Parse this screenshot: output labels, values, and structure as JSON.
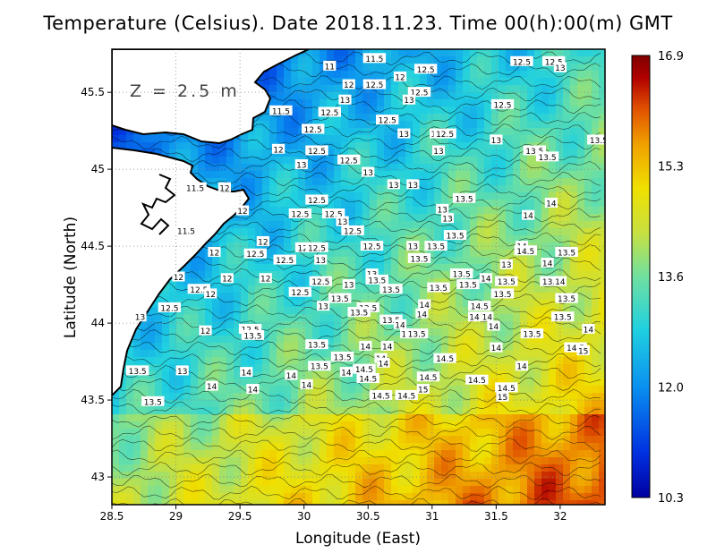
{
  "title": "Temperature (Celsius). Date 2018.11.23. Time 00(h):00(m) GMT",
  "depth_label": "Z = 2.5 m",
  "chart_data": {
    "type": "heatmap",
    "title": "Temperature (Celsius). Date 2018.11.23. Time 00(h):00(m) GMT",
    "xlabel": "Longitude (East)",
    "ylabel": "Latitude (North)",
    "xlim": [
      28.5,
      32.35
    ],
    "ylim": [
      42.82,
      45.78
    ],
    "xticks": [
      "28.5",
      "29",
      "29.5",
      "30",
      "30.5",
      "31",
      "31.5",
      "32"
    ],
    "yticks": [
      "43",
      "43.5",
      "44",
      "44.5",
      "45",
      "45.5"
    ],
    "grid": true,
    "colorbar": {
      "min": 10.3,
      "max": 16.9,
      "tick_labels": [
        "16.9",
        "15.3",
        "13.6",
        "12.0",
        "10.3"
      ],
      "colors": [
        "#0000a0",
        "#0030e0",
        "#0a90f0",
        "#20d0e0",
        "#70e0a0",
        "#c8e040",
        "#f0e000",
        "#f0a000",
        "#e05000",
        "#b00000",
        "#800000"
      ]
    },
    "contour_labels": [
      {
        "text": "11.5",
        "x": 30.55,
        "y": 45.72
      },
      {
        "text": "12.5",
        "x": 31.7,
        "y": 45.7
      },
      {
        "text": "12.5",
        "x": 31.95,
        "y": 45.7
      },
      {
        "text": "13",
        "x": 32.0,
        "y": 45.66
      },
      {
        "text": "11",
        "x": 30.2,
        "y": 45.67
      },
      {
        "text": "12.5",
        "x": 30.95,
        "y": 45.65
      },
      {
        "text": "12",
        "x": 30.75,
        "y": 45.6
      },
      {
        "text": "12",
        "x": 30.35,
        "y": 45.55
      },
      {
        "text": "12.5",
        "x": 30.55,
        "y": 45.55
      },
      {
        "text": "12.5",
        "x": 30.9,
        "y": 45.5
      },
      {
        "text": "13",
        "x": 30.82,
        "y": 45.45
      },
      {
        "text": "12.5",
        "x": 31.55,
        "y": 45.42
      },
      {
        "text": "13",
        "x": 30.32,
        "y": 45.45
      },
      {
        "text": "12.5",
        "x": 30.2,
        "y": 45.37
      },
      {
        "text": "11.5",
        "x": 29.82,
        "y": 45.38
      },
      {
        "text": "12.5",
        "x": 30.65,
        "y": 45.32
      },
      {
        "text": "12.5",
        "x": 30.07,
        "y": 45.26
      },
      {
        "text": "13",
        "x": 30.78,
        "y": 45.23
      },
      {
        "text": "13",
        "x": 31.03,
        "y": 45.23
      },
      {
        "text": "12.5",
        "x": 31.1,
        "y": 45.23
      },
      {
        "text": "13",
        "x": 31.5,
        "y": 45.19
      },
      {
        "text": "13.5",
        "x": 32.3,
        "y": 45.19
      },
      {
        "text": "12.5",
        "x": 30.1,
        "y": 45.12
      },
      {
        "text": "12",
        "x": 29.8,
        "y": 45.13
      },
      {
        "text": "13.5",
        "x": 31.8,
        "y": 45.12
      },
      {
        "text": "13",
        "x": 31.05,
        "y": 45.12
      },
      {
        "text": "13.5",
        "x": 31.9,
        "y": 45.08
      },
      {
        "text": "12.5",
        "x": 30.35,
        "y": 45.06
      },
      {
        "text": "13",
        "x": 29.98,
        "y": 45.03
      },
      {
        "text": "13",
        "x": 30.5,
        "y": 44.98
      },
      {
        "text": "11.5",
        "x": 29.15,
        "y": 44.88
      },
      {
        "text": "12",
        "x": 29.38,
        "y": 44.88
      },
      {
        "text": "13",
        "x": 30.7,
        "y": 44.9
      },
      {
        "text": "13",
        "x": 30.85,
        "y": 44.9
      },
      {
        "text": "12.5",
        "x": 30.1,
        "y": 44.8
      },
      {
        "text": "13.5",
        "x": 31.25,
        "y": 44.81
      },
      {
        "text": "14",
        "x": 31.93,
        "y": 44.78
      },
      {
        "text": "12",
        "x": 29.52,
        "y": 44.73
      },
      {
        "text": "12.5",
        "x": 29.97,
        "y": 44.71
      },
      {
        "text": "12.5",
        "x": 30.23,
        "y": 44.71
      },
      {
        "text": "13",
        "x": 31.08,
        "y": 44.74
      },
      {
        "text": "14",
        "x": 31.75,
        "y": 44.7
      },
      {
        "text": "13",
        "x": 30.3,
        "y": 44.66
      },
      {
        "text": "13",
        "x": 31.12,
        "y": 44.68
      },
      {
        "text": "12.5",
        "x": 30.38,
        "y": 44.6
      },
      {
        "text": "11.5",
        "x": 29.08,
        "y": 44.6
      },
      {
        "text": "13.5",
        "x": 31.18,
        "y": 44.57
      },
      {
        "text": "12",
        "x": 29.68,
        "y": 44.53
      },
      {
        "text": "12.5",
        "x": 30.53,
        "y": 44.5
      },
      {
        "text": "13",
        "x": 30.85,
        "y": 44.5
      },
      {
        "text": "13.5",
        "x": 31.03,
        "y": 44.5
      },
      {
        "text": "14",
        "x": 31.7,
        "y": 44.5
      },
      {
        "text": "12.5",
        "x": 30.02,
        "y": 44.49
      },
      {
        "text": "12.5",
        "x": 30.1,
        "y": 44.49
      },
      {
        "text": "12",
        "x": 29.3,
        "y": 44.46
      },
      {
        "text": "12.5",
        "x": 29.62,
        "y": 44.45
      },
      {
        "text": "14.5",
        "x": 31.73,
        "y": 44.47
      },
      {
        "text": "13.5",
        "x": 32.05,
        "y": 44.46
      },
      {
        "text": "12.5",
        "x": 29.85,
        "y": 44.41
      },
      {
        "text": "13",
        "x": 30.13,
        "y": 44.41
      },
      {
        "text": "13.5",
        "x": 30.9,
        "y": 44.42
      },
      {
        "text": "14",
        "x": 31.9,
        "y": 44.39
      },
      {
        "text": "13",
        "x": 31.58,
        "y": 44.38
      },
      {
        "text": "12",
        "x": 29.02,
        "y": 44.3
      },
      {
        "text": "12",
        "x": 29.4,
        "y": 44.29
      },
      {
        "text": "12",
        "x": 29.7,
        "y": 44.29
      },
      {
        "text": "13",
        "x": 30.53,
        "y": 44.32
      },
      {
        "text": "13.5",
        "x": 31.23,
        "y": 44.32
      },
      {
        "text": "14",
        "x": 31.42,
        "y": 44.29
      },
      {
        "text": "12.5",
        "x": 30.13,
        "y": 44.27
      },
      {
        "text": "13",
        "x": 30.35,
        "y": 44.25
      },
      {
        "text": "13.5",
        "x": 30.57,
        "y": 44.28
      },
      {
        "text": "13.5",
        "x": 31.28,
        "y": 44.25
      },
      {
        "text": "13.5",
        "x": 31.58,
        "y": 44.27
      },
      {
        "text": "13.5",
        "x": 31.93,
        "y": 44.27
      },
      {
        "text": "14",
        "x": 32.0,
        "y": 44.27
      },
      {
        "text": "12.5",
        "x": 29.18,
        "y": 44.22
      },
      {
        "text": "12",
        "x": 29.27,
        "y": 44.19
      },
      {
        "text": "12.5",
        "x": 29.97,
        "y": 44.2
      },
      {
        "text": "13.5",
        "x": 30.68,
        "y": 44.22
      },
      {
        "text": "13.5",
        "x": 31.05,
        "y": 44.23
      },
      {
        "text": "13.5",
        "x": 31.55,
        "y": 44.19
      },
      {
        "text": "13.5",
        "x": 30.28,
        "y": 44.16
      },
      {
        "text": "13.5",
        "x": 32.05,
        "y": 44.16
      },
      {
        "text": "12.5",
        "x": 28.95,
        "y": 44.1
      },
      {
        "text": "13",
        "x": 30.15,
        "y": 44.11
      },
      {
        "text": "13.5",
        "x": 30.5,
        "y": 44.1
      },
      {
        "text": "14",
        "x": 30.94,
        "y": 44.12
      },
      {
        "text": "14.5",
        "x": 31.37,
        "y": 44.11
      },
      {
        "text": "13.5",
        "x": 30.43,
        "y": 44.07
      },
      {
        "text": "14",
        "x": 30.92,
        "y": 44.06
      },
      {
        "text": "14",
        "x": 31.33,
        "y": 44.04
      },
      {
        "text": "14",
        "x": 31.43,
        "y": 44.04
      },
      {
        "text": "13",
        "x": 28.72,
        "y": 44.04
      },
      {
        "text": "13.5",
        "x": 32.02,
        "y": 44.04
      },
      {
        "text": "13.5",
        "x": 30.68,
        "y": 44.02
      },
      {
        "text": "14",
        "x": 30.75,
        "y": 43.99
      },
      {
        "text": "14",
        "x": 31.48,
        "y": 43.98
      },
      {
        "text": "14",
        "x": 32.22,
        "y": 43.96
      },
      {
        "text": "12",
        "x": 29.23,
        "y": 43.95
      },
      {
        "text": "12.5",
        "x": 29.58,
        "y": 43.96
      },
      {
        "text": "13.5",
        "x": 29.6,
        "y": 43.92
      },
      {
        "text": "14",
        "x": 30.8,
        "y": 43.93
      },
      {
        "text": "13.5",
        "x": 30.88,
        "y": 43.93
      },
      {
        "text": "13.5",
        "x": 31.78,
        "y": 43.93
      },
      {
        "text": "13.5",
        "x": 30.1,
        "y": 43.86
      },
      {
        "text": "14",
        "x": 30.48,
        "y": 43.85
      },
      {
        "text": "14",
        "x": 30.65,
        "y": 43.85
      },
      {
        "text": "14.5",
        "x": 32.12,
        "y": 43.84
      },
      {
        "text": "14",
        "x": 31.5,
        "y": 43.84
      },
      {
        "text": "13.5",
        "x": 30.3,
        "y": 43.78
      },
      {
        "text": "14",
        "x": 30.6,
        "y": 43.77
      },
      {
        "text": "14.5",
        "x": 31.1,
        "y": 43.77
      },
      {
        "text": "15",
        "x": 32.18,
        "y": 43.82
      },
      {
        "text": "14",
        "x": 30.62,
        "y": 43.74
      },
      {
        "text": "13.5",
        "x": 30.12,
        "y": 43.72
      },
      {
        "text": "14.5",
        "x": 30.47,
        "y": 43.7
      },
      {
        "text": "14",
        "x": 31.7,
        "y": 43.72
      },
      {
        "text": "13.5",
        "x": 28.7,
        "y": 43.69
      },
      {
        "text": "14",
        "x": 30.33,
        "y": 43.68
      },
      {
        "text": "13",
        "x": 29.05,
        "y": 43.69
      },
      {
        "text": "14",
        "x": 29.55,
        "y": 43.68
      },
      {
        "text": "14",
        "x": 29.9,
        "y": 43.66
      },
      {
        "text": "14.5",
        "x": 30.5,
        "y": 43.64
      },
      {
        "text": "14.5",
        "x": 30.97,
        "y": 43.65
      },
      {
        "text": "14.5",
        "x": 31.35,
        "y": 43.63
      },
      {
        "text": "14",
        "x": 30.02,
        "y": 43.6
      },
      {
        "text": "14",
        "x": 29.28,
        "y": 43.59
      },
      {
        "text": "14",
        "x": 29.6,
        "y": 43.57
      },
      {
        "text": "15",
        "x": 30.93,
        "y": 43.57
      },
      {
        "text": "14.5",
        "x": 31.58,
        "y": 43.58
      },
      {
        "text": "14.5",
        "x": 30.6,
        "y": 43.53
      },
      {
        "text": "14.5",
        "x": 30.8,
        "y": 43.53
      },
      {
        "text": "15",
        "x": 31.55,
        "y": 43.52
      },
      {
        "text": "13.5",
        "x": 28.82,
        "y": 43.49
      }
    ]
  }
}
